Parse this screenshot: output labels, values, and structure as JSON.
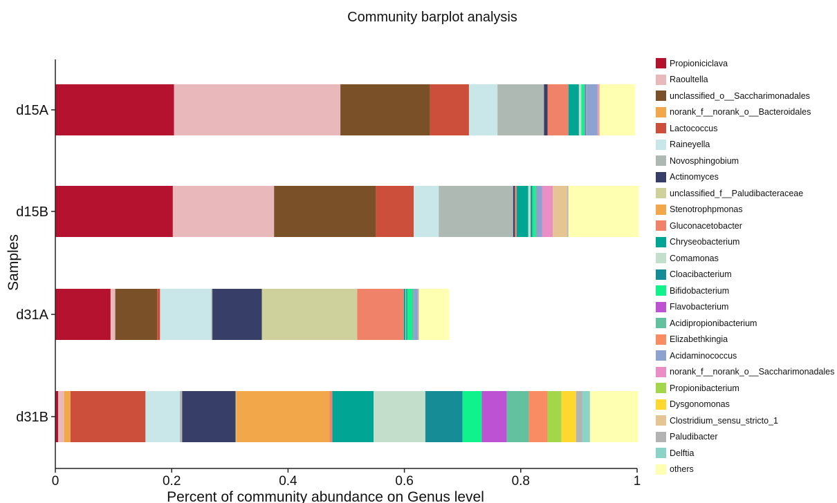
{
  "chart_data": {
    "type": "bar",
    "orientation": "horizontal",
    "stacked": true,
    "title": "Community barplot analysis",
    "xlabel": "Percent of community abundance on Genus level",
    "ylabel": "Samples",
    "xlim": [
      0,
      1
    ],
    "xticks": [
      "0",
      "0.2",
      "0.4",
      "0.6",
      "0.8",
      "1"
    ],
    "legend_position": "right",
    "grid": false,
    "categories": [
      "d15A",
      "d15B",
      "d31A",
      "d31B"
    ],
    "series": [
      {
        "name": "Propioniciclava",
        "color": "#b5122f",
        "values": [
          0.204,
          0.202,
          0.095,
          0.005
        ]
      },
      {
        "name": "Raoultella",
        "color": "#e8b8bb",
        "values": [
          0.286,
          0.174,
          0.008,
          0.01
        ]
      },
      {
        "name": "unclassified_o__Saccharimonadales",
        "color": "#7a5028",
        "values": [
          0.154,
          0.175,
          0.072,
          0.0
        ]
      },
      {
        "name": "norank_f__norank_o__Bacteroidales",
        "color": "#f2a74b",
        "values": [
          0.0,
          0.0,
          0.0,
          0.011
        ]
      },
      {
        "name": "Lactococcus",
        "color": "#cc4f3b",
        "values": [
          0.067,
          0.065,
          0.005,
          0.129
        ]
      },
      {
        "name": "Raineyella",
        "color": "#c9e6e8",
        "values": [
          0.049,
          0.043,
          0.088,
          0.059
        ]
      },
      {
        "name": "Novosphingobium",
        "color": "#aeb9b3",
        "values": [
          0.08,
          0.128,
          0.002,
          0.004
        ]
      },
      {
        "name": "Actinomyces",
        "color": "#373e68",
        "values": [
          0.006,
          0.003,
          0.085,
          0.092
        ]
      },
      {
        "name": "unclassified_f__Paludibacteraceae",
        "color": "#cfd19c",
        "values": [
          0.0,
          0.0,
          0.164,
          0.001
        ]
      },
      {
        "name": "Stenotrophpmonas",
        "color": "#f2a74b",
        "values": [
          0.0,
          0.0,
          0.0,
          0.16
        ]
      },
      {
        "name": "Gluconacetobacter",
        "color": "#f0826a",
        "values": [
          0.036,
          0.003,
          0.08,
          0.005
        ]
      },
      {
        "name": "Chryseobacterium",
        "color": "#00a693",
        "values": [
          0.018,
          0.02,
          0.003,
          0.071
        ]
      },
      {
        "name": "Comamonas",
        "color": "#c3dfcc",
        "values": [
          0.004,
          0.004,
          0.001,
          0.089
        ]
      },
      {
        "name": "Cloacibacterium",
        "color": "#168d96",
        "values": [
          0.0,
          0.003,
          0.002,
          0.064
        ]
      },
      {
        "name": "Bifidobacterium",
        "color": "#0ff28c",
        "values": [
          0.006,
          0.005,
          0.008,
          0.033
        ]
      },
      {
        "name": "Flavobacterium",
        "color": "#bd53d2",
        "values": [
          0.002,
          0.0,
          0.0,
          0.043
        ]
      },
      {
        "name": "Acidipropionibacterium",
        "color": "#63c19f",
        "values": [
          0.002,
          0.002,
          0.003,
          0.038
        ]
      },
      {
        "name": "Elizabethkingia",
        "color": "#fa8c64",
        "values": [
          0.0,
          0.0,
          0.0,
          0.032
        ]
      },
      {
        "name": "Acidaminococcus",
        "color": "#8ea2d0",
        "values": [
          0.018,
          0.01,
          0.007,
          0.0
        ]
      },
      {
        "name": "norank_f__norank_o__Saccharimonadales",
        "color": "#ea8ec6",
        "values": [
          0.002,
          0.018,
          0.0,
          0.0
        ]
      },
      {
        "name": "Propionibacterium",
        "color": "#a3d64a",
        "values": [
          0.0,
          0.0,
          0.0,
          0.024
        ]
      },
      {
        "name": "Dysgonomonas",
        "color": "#fed82f",
        "values": [
          0.0,
          0.0,
          0.0,
          0.025
        ]
      },
      {
        "name": "Clostridium_sensu_stricto_1",
        "color": "#e4c593",
        "values": [
          0.002,
          0.025,
          0.0,
          0.0
        ]
      },
      {
        "name": "Paludibacter",
        "color": "#b3b3b3",
        "values": [
          0.0,
          0.002,
          0.002,
          0.011
        ]
      },
      {
        "name": "Delftia",
        "color": "#8bd3c7",
        "values": [
          0.0,
          0.0,
          0.0,
          0.013
        ]
      },
      {
        "name": "others",
        "color": "#ffffb1",
        "values": [
          0.061,
          0.121,
          0.052,
          0.083
        ]
      }
    ]
  }
}
